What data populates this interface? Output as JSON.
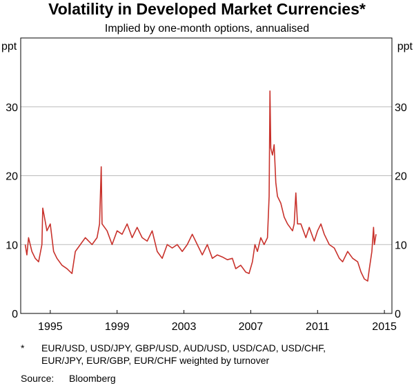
{
  "chart_data": {
    "type": "line",
    "title": "Volatility in Developed Market Currencies*",
    "subtitle": "Implied by one-month options, annualised",
    "y_label": "ppt",
    "y2_label": "ppt",
    "color": "#c8312b",
    "grid": true,
    "xlim": [
      1993.73,
      2015.95
    ],
    "ylim": [
      0,
      40
    ],
    "xticks": [
      {
        "value": 1995.5,
        "label": "1995"
      },
      {
        "value": 1999.5,
        "label": "1999"
      },
      {
        "value": 2003.5,
        "label": "2003"
      },
      {
        "value": 2007.5,
        "label": "2007"
      },
      {
        "value": 2011.5,
        "label": "2011"
      },
      {
        "value": 2015.5,
        "label": "2015"
      }
    ],
    "yticks": [
      0,
      10,
      20,
      30
    ],
    "x": [
      1994.0,
      1994.1,
      1994.2,
      1994.4,
      1994.6,
      1994.8,
      1995.0,
      1995.05,
      1995.15,
      1995.3,
      1995.5,
      1995.7,
      1995.9,
      1996.2,
      1996.5,
      1996.8,
      1997.0,
      1997.3,
      1997.6,
      1998.0,
      1998.3,
      1998.45,
      1998.55,
      1998.6,
      1998.9,
      1999.2,
      1999.5,
      1999.8,
      2000.1,
      2000.4,
      2000.7,
      2001.0,
      2001.3,
      2001.6,
      2001.9,
      2002.2,
      2002.5,
      2002.8,
      2003.1,
      2003.4,
      2003.7,
      2004.0,
      2004.3,
      2004.6,
      2004.9,
      2005.2,
      2005.5,
      2005.8,
      2006.1,
      2006.4,
      2006.6,
      2006.9,
      2007.2,
      2007.4,
      2007.6,
      2007.75,
      2007.9,
      2008.1,
      2008.3,
      2008.5,
      2008.6,
      2008.65,
      2008.7,
      2008.8,
      2008.9,
      2009.0,
      2009.1,
      2009.3,
      2009.5,
      2009.7,
      2010.0,
      2010.1,
      2010.2,
      2010.3,
      2010.5,
      2010.8,
      2011.0,
      2011.3,
      2011.5,
      2011.7,
      2011.9,
      2012.2,
      2012.5,
      2012.8,
      2013.0,
      2013.3,
      2013.6,
      2013.9,
      2014.1,
      2014.3,
      2014.5,
      2014.6,
      2014.75,
      2014.85,
      2014.9,
      2015.0
    ],
    "values": [
      10,
      8.5,
      11,
      9,
      8,
      7.5,
      10,
      15.3,
      14,
      12,
      13,
      9,
      8,
      7,
      6.5,
      5.8,
      9,
      10,
      11,
      10,
      11,
      13,
      21.3,
      13,
      12,
      10,
      12,
      11.5,
      13,
      11,
      12.5,
      11,
      10.5,
      12,
      9,
      8,
      10,
      9.5,
      10,
      9,
      10,
      11.5,
      10,
      8.5,
      10,
      8,
      8.5,
      8.2,
      7.8,
      8,
      6.5,
      7,
      6,
      5.8,
      7.5,
      10,
      9,
      11,
      10,
      11,
      17,
      32.3,
      24,
      23,
      24.5,
      19,
      17,
      16,
      14,
      13,
      12,
      13,
      17.5,
      13,
      13,
      11,
      12.5,
      10.5,
      12,
      13,
      11.5,
      10,
      9.5,
      8,
      7.5,
      9,
      8,
      7.5,
      6,
      5,
      4.7,
      6.5,
      9,
      12.5,
      10,
      11.5
    ],
    "footnote": {
      "marker": "*",
      "lines": [
        "EUR/USD, USD/JPY, GBP/USD, AUD/USD, USD/CAD, USD/CHF,",
        "EUR/JPY, EUR/GBP, EUR/CHF weighted by turnover"
      ]
    },
    "source": {
      "label": "Source:",
      "text": "Bloomberg"
    }
  }
}
